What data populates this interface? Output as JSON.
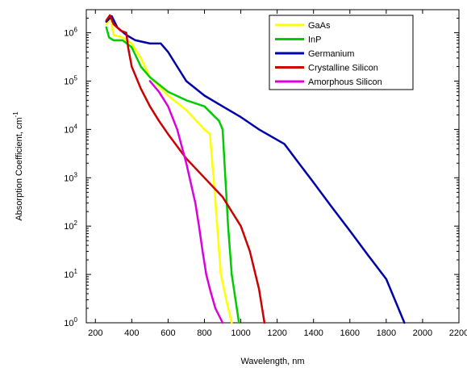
{
  "chart_data": {
    "type": "line",
    "title": "",
    "xlabel": "Wavelength, nm",
    "ylabel": "Absorption Coefficient, cm",
    "ylabel_sup": "-1",
    "xlim": [
      150,
      2200
    ],
    "ylim": [
      1,
      3000000
    ],
    "yscale": "log",
    "grid": false,
    "legend_position": "top-right",
    "x_ticks": [
      200,
      400,
      600,
      800,
      1000,
      1200,
      1400,
      1600,
      1800,
      2000,
      2200
    ],
    "x_tick_labels": [
      "200",
      "400",
      "600",
      "800",
      "1000",
      "1200",
      "1400",
      "1600",
      "1800",
      "2000",
      "2200"
    ],
    "y_ticks": [
      1,
      10,
      100,
      1000,
      10000,
      100000,
      1000000
    ],
    "y_tick_labels": [
      {
        "base": "10",
        "exp": "0"
      },
      {
        "base": "10",
        "exp": "1"
      },
      {
        "base": "10",
        "exp": "2"
      },
      {
        "base": "10",
        "exp": "3"
      },
      {
        "base": "10",
        "exp": "4"
      },
      {
        "base": "10",
        "exp": "5"
      },
      {
        "base": "10",
        "exp": "6"
      }
    ],
    "series": [
      {
        "name": "GaAs",
        "color": "#ffff00",
        "points": [
          [
            260,
            1500000
          ],
          [
            285,
            2000000
          ],
          [
            300,
            900000
          ],
          [
            350,
            800000
          ],
          [
            400,
            600000
          ],
          [
            450,
            300000
          ],
          [
            500,
            120000
          ],
          [
            600,
            50000
          ],
          [
            700,
            25000
          ],
          [
            800,
            10000
          ],
          [
            830,
            8000
          ],
          [
            850,
            1000
          ],
          [
            870,
            100
          ],
          [
            890,
            10
          ],
          [
            920,
            3
          ],
          [
            950,
            1
          ]
        ]
      },
      {
        "name": "InP",
        "color": "#00cc00",
        "points": [
          [
            260,
            1300000
          ],
          [
            275,
            800000
          ],
          [
            300,
            700000
          ],
          [
            350,
            700000
          ],
          [
            400,
            500000
          ],
          [
            450,
            200000
          ],
          [
            500,
            120000
          ],
          [
            600,
            60000
          ],
          [
            700,
            40000
          ],
          [
            800,
            30000
          ],
          [
            880,
            15000
          ],
          [
            900,
            10000
          ],
          [
            915,
            1000
          ],
          [
            930,
            100
          ],
          [
            950,
            10
          ],
          [
            990,
            1
          ]
        ]
      },
      {
        "name": "Germanium",
        "color": "#0000aa",
        "points": [
          [
            260,
            1700000
          ],
          [
            290,
            2200000
          ],
          [
            320,
            1300000
          ],
          [
            370,
            900000
          ],
          [
            420,
            700000
          ],
          [
            500,
            600000
          ],
          [
            560,
            600000
          ],
          [
            600,
            400000
          ],
          [
            650,
            200000
          ],
          [
            700,
            100000
          ],
          [
            800,
            50000
          ],
          [
            900,
            30000
          ],
          [
            1000,
            18000
          ],
          [
            1100,
            10000
          ],
          [
            1240,
            5000
          ],
          [
            1300,
            2500
          ],
          [
            1400,
            800
          ],
          [
            1500,
            250
          ],
          [
            1600,
            80
          ],
          [
            1700,
            25
          ],
          [
            1800,
            8
          ],
          [
            1900,
            1
          ]
        ]
      },
      {
        "name": "Crystalline Silicon",
        "color": "#cc0000",
        "points": [
          [
            260,
            1800000
          ],
          [
            280,
            2300000
          ],
          [
            300,
            1500000
          ],
          [
            340,
            1100000
          ],
          [
            370,
            1000000
          ],
          [
            380,
            500000
          ],
          [
            400,
            200000
          ],
          [
            450,
            70000
          ],
          [
            500,
            30000
          ],
          [
            550,
            15000
          ],
          [
            600,
            8000
          ],
          [
            700,
            2500
          ],
          [
            800,
            1000
          ],
          [
            900,
            400
          ],
          [
            1000,
            100
          ],
          [
            1050,
            30
          ],
          [
            1100,
            5
          ],
          [
            1130,
            1
          ]
        ]
      },
      {
        "name": "Amorphous Silicon",
        "color": "#dd00dd",
        "points": [
          [
            500,
            100000
          ],
          [
            550,
            60000
          ],
          [
            600,
            30000
          ],
          [
            650,
            10000
          ],
          [
            700,
            2000
          ],
          [
            750,
            300
          ],
          [
            770,
            100
          ],
          [
            790,
            30
          ],
          [
            810,
            10
          ],
          [
            830,
            5
          ],
          [
            860,
            2
          ],
          [
            900,
            1
          ]
        ]
      }
    ]
  }
}
